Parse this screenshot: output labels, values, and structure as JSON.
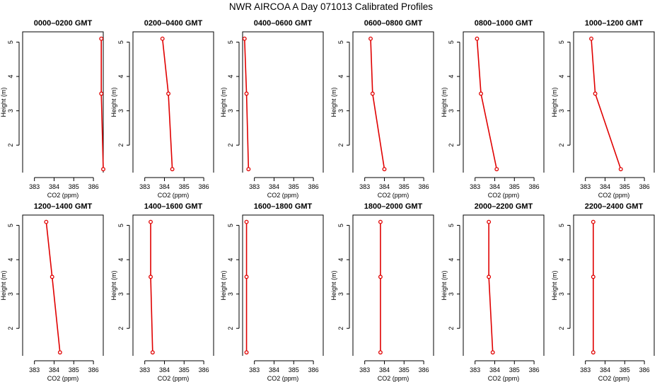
{
  "title": "NWR AIRCOA A  Day 071013  Calibrated Profiles",
  "colors": {
    "series": "#e00000",
    "axis": "#000000"
  },
  "chart_data": {
    "type": "line",
    "grid": false,
    "xlabel": "CO2 (ppm)",
    "ylabel": "Height (m)",
    "xlim": [
      382.4,
      386.5
    ],
    "ylim": [
      1.2,
      5.3
    ],
    "xticks": [
      383,
      384,
      385,
      386
    ],
    "yticks": [
      2,
      3,
      4,
      5
    ],
    "heights": [
      5.1,
      3.5,
      1.3
    ],
    "panels": [
      {
        "title": "0000–0200 GMT",
        "co2": [
          386.4,
          386.4,
          386.5
        ]
      },
      {
        "title": "0200–0400 GMT",
        "co2": [
          383.9,
          384.2,
          384.4
        ]
      },
      {
        "title": "0400–0600 GMT",
        "co2": [
          382.5,
          382.6,
          382.7
        ]
      },
      {
        "title": "0600–0800 GMT",
        "co2": [
          383.3,
          383.4,
          384.0
        ]
      },
      {
        "title": "0800–1000 GMT",
        "co2": [
          383.1,
          383.3,
          384.1
        ]
      },
      {
        "title": "1000–1200 GMT",
        "co2": [
          383.3,
          383.5,
          384.8
        ]
      },
      {
        "title": "1200–1400 GMT",
        "co2": [
          383.6,
          383.9,
          384.3
        ]
      },
      {
        "title": "1400–1600 GMT",
        "co2": [
          383.3,
          383.3,
          383.4
        ]
      },
      {
        "title": "1600–1800 GMT",
        "co2": [
          382.6,
          382.6,
          382.6
        ]
      },
      {
        "title": "1800–2000 GMT",
        "co2": [
          383.8,
          383.8,
          383.8
        ]
      },
      {
        "title": "2000–2200 GMT",
        "co2": [
          383.7,
          383.7,
          383.9
        ]
      },
      {
        "title": "2200–2400 GMT",
        "co2": [
          383.4,
          383.4,
          383.4
        ]
      }
    ]
  }
}
